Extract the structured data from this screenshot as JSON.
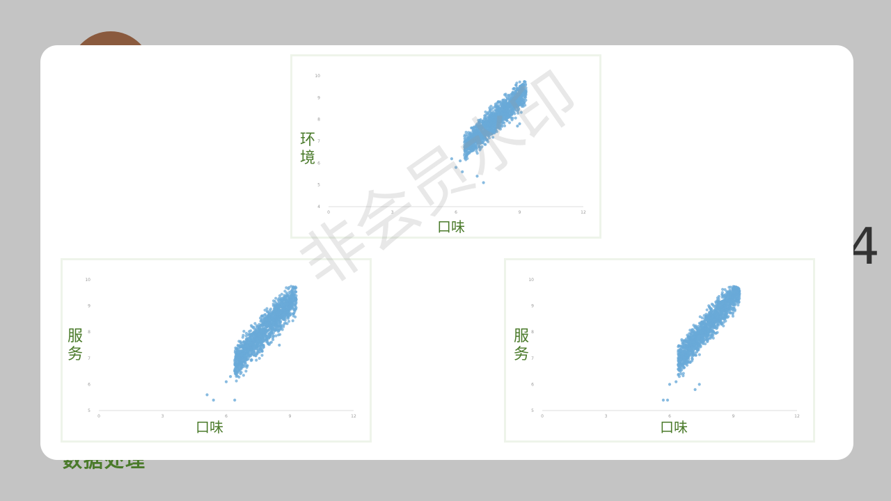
{
  "background": {
    "digit": "4",
    "bottom_text": "数据处理"
  },
  "watermark": "非会员水印",
  "colors": {
    "point": "#6aaad8",
    "label": "#4a7a2a",
    "axis": "#dddddd"
  },
  "chart_data": [
    {
      "type": "scatter",
      "xlabel": "口味",
      "ylabel": "环境",
      "xlim": [
        0,
        12
      ],
      "ylim": [
        4,
        10
      ],
      "xticks": [
        0,
        3,
        6,
        9,
        12
      ],
      "yticks": [
        4,
        5,
        6,
        7,
        8,
        9,
        10
      ],
      "cloud": {
        "x_range": [
          6.4,
          9.3
        ],
        "y_center_at_x_min": 6.7,
        "slope": 0.9,
        "spread": 0.3
      },
      "points": [
        [
          5.8,
          6.2
        ],
        [
          6.0,
          5.8
        ],
        [
          6.3,
          5.6
        ],
        [
          7.0,
          5.4
        ],
        [
          7.3,
          5.1
        ],
        [
          6.2,
          6.1
        ],
        [
          9.0,
          7.8
        ],
        [
          8.9,
          7.7
        ]
      ]
    },
    {
      "type": "scatter",
      "xlabel": "口味",
      "ylabel": "服务",
      "xlim": [
        0,
        12
      ],
      "ylim": [
        5,
        10
      ],
      "xticks": [
        0,
        3,
        6,
        9,
        12
      ],
      "yticks": [
        5,
        6,
        7,
        8,
        9,
        10
      ],
      "cloud": {
        "x_range": [
          6.4,
          9.3
        ],
        "y_center_at_x_min": 6.8,
        "slope": 0.9,
        "spread": 0.3
      },
      "points": [
        [
          5.1,
          5.6
        ],
        [
          5.4,
          5.4
        ],
        [
          6.4,
          5.4
        ],
        [
          6.0,
          6.1
        ],
        [
          6.2,
          6.3
        ],
        [
          8.5,
          7.5
        ]
      ]
    },
    {
      "type": "scatter",
      "xlabel": "口味",
      "ylabel": "服务",
      "xlim": [
        0,
        12
      ],
      "ylim": [
        5,
        10
      ],
      "xticks": [
        0,
        3,
        6,
        9,
        12
      ],
      "yticks": [
        5,
        6,
        7,
        8,
        9,
        10
      ],
      "cloud": {
        "x_range": [
          6.4,
          9.3
        ],
        "y_center_at_x_min": 6.9,
        "slope": 0.95,
        "spread": 0.28
      },
      "points": [
        [
          5.7,
          5.4
        ],
        [
          5.9,
          5.4
        ],
        [
          6.0,
          6.0
        ],
        [
          6.3,
          6.1
        ],
        [
          7.2,
          5.8
        ],
        [
          7.4,
          6.0
        ]
      ]
    }
  ]
}
